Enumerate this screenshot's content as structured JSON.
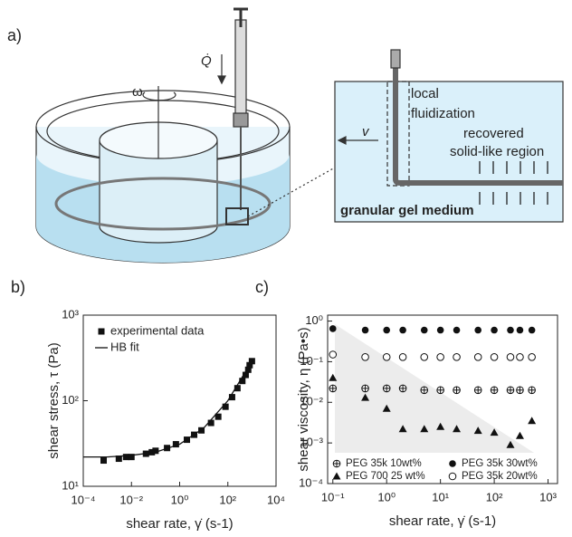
{
  "figure": {
    "panel_a": {
      "label": "a)",
      "omega": "ω",
      "flow_rate": "Q̇",
      "inset": {
        "fluidization_lines": [
          "local",
          "fluidization"
        ],
        "recovered_lines": [
          "recovered",
          "solid-like region"
        ],
        "velocity": "v",
        "medium": "granular gel medium"
      }
    }
  },
  "chart_data": [
    {
      "type": "scatter",
      "panel_label": "b)",
      "xlabel": "shear rate, γ̇ (s-1)",
      "ylabel": "shear stress, τ (Pa)",
      "log_x": true,
      "log_y": true,
      "xlim": [
        0.0001,
        10000
      ],
      "ylim": [
        10,
        1000
      ],
      "xticks": [
        {
          "value": 0.0001,
          "label": "10⁻⁴"
        },
        {
          "value": 0.01,
          "label": "10⁻²"
        },
        {
          "value": 1,
          "label": "10⁰"
        },
        {
          "value": 100,
          "label": "10²"
        },
        {
          "value": 10000,
          "label": "10⁴"
        }
      ],
      "yticks": [
        {
          "value": 10,
          "label": "10¹"
        },
        {
          "value": 100,
          "label": "10²"
        },
        {
          "value": 1000,
          "label": "10³"
        }
      ],
      "series": [
        {
          "name": "experimental data",
          "color": "#111111",
          "marker": "square",
          "x": [
            0.0007,
            0.003,
            0.006,
            0.01,
            0.04,
            0.07,
            0.1,
            0.3,
            0.7,
            2,
            4,
            8,
            20,
            40,
            80,
            150,
            250,
            400,
            550,
            700,
            800,
            1000
          ],
          "values": [
            20,
            21,
            22,
            22,
            24,
            25,
            26,
            28,
            31,
            35,
            40,
            45,
            55,
            65,
            85,
            110,
            140,
            170,
            200,
            230,
            260,
            290
          ]
        },
        {
          "name": "HB fit",
          "color": "#111111",
          "marker": "line",
          "x": [
            0.0001,
            0.001,
            0.01,
            0.1,
            1,
            10,
            100,
            1000
          ],
          "values": [
            22,
            22,
            23,
            25,
            31,
            48,
            100,
            290
          ]
        }
      ]
    },
    {
      "type": "scatter",
      "panel_label": "c)",
      "xlabel": "shear rate, γ̇ (s-1)",
      "ylabel": "shear viscosity, η (Pa•s)",
      "log_x": true,
      "log_y": true,
      "xlim": [
        0.08,
        1500
      ],
      "ylim": [
        0.0001,
        1.4
      ],
      "xticks": [
        {
          "value": 0.1,
          "label": "10⁻¹"
        },
        {
          "value": 1,
          "label": "10⁰"
        },
        {
          "value": 10,
          "label": "10¹"
        },
        {
          "value": 100,
          "label": "10²"
        },
        {
          "value": 1000,
          "label": "10³"
        }
      ],
      "yticks": [
        {
          "value": 0.0001,
          "label": "10⁻⁴"
        },
        {
          "value": 0.001,
          "label": "10⁻³"
        },
        {
          "value": 0.01,
          "label": "10⁻²"
        },
        {
          "value": 0.1,
          "label": "10⁻¹"
        },
        {
          "value": 1,
          "label": "10⁰"
        }
      ],
      "series": [
        {
          "name": "PEG 35k 10wt%",
          "color": "#111111",
          "marker": "circle-cross",
          "x": [
            0.1,
            0.4,
            1,
            2,
            5,
            10,
            20,
            50,
            100,
            200,
            300,
            500
          ],
          "values": [
            0.022,
            0.022,
            0.022,
            0.022,
            0.02,
            0.02,
            0.02,
            0.02,
            0.02,
            0.02,
            0.02,
            0.02
          ]
        },
        {
          "name": "PEG 35k 30wt%",
          "color": "#111111",
          "marker": "circle-filled",
          "x": [
            0.1,
            0.4,
            1,
            2,
            5,
            10,
            20,
            50,
            100,
            200,
            300,
            500
          ],
          "values": [
            0.65,
            0.6,
            0.6,
            0.6,
            0.6,
            0.6,
            0.6,
            0.6,
            0.6,
            0.6,
            0.6,
            0.6
          ]
        },
        {
          "name": "PEG 700 25 wt%",
          "color": "#111111",
          "marker": "triangle",
          "x": [
            0.1,
            0.4,
            1,
            2,
            5,
            10,
            20,
            50,
            100,
            200,
            300,
            500
          ],
          "values": [
            0.04,
            0.013,
            0.007,
            0.0022,
            0.0022,
            0.0025,
            0.0022,
            0.002,
            0.0018,
            0.0009,
            0.0015,
            0.0035
          ]
        },
        {
          "name": "PEG 35k 20wt%",
          "color": "#111111",
          "marker": "circle-open",
          "x": [
            0.1,
            0.4,
            1,
            2,
            5,
            10,
            20,
            50,
            100,
            200,
            300,
            500
          ],
          "values": [
            0.15,
            0.13,
            0.13,
            0.13,
            0.13,
            0.13,
            0.13,
            0.13,
            0.13,
            0.13,
            0.13,
            0.13
          ]
        }
      ]
    }
  ]
}
